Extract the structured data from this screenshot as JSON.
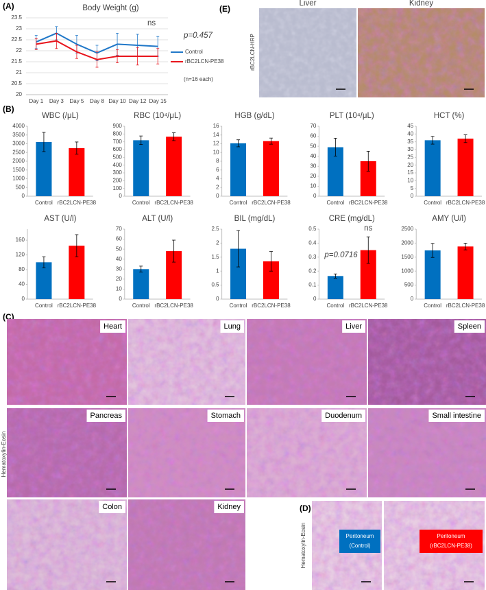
{
  "panel_labels": [
    "(A)",
    "(B)",
    "(C)",
    "(D)",
    "(E)"
  ],
  "chart_data": [
    {
      "type": "line",
      "title": "Body Weight (g)",
      "categories": [
        "Day 1",
        "Day 3",
        "Day 5",
        "Day 8",
        "Day 10",
        "Day 12",
        "Day 15"
      ],
      "series": [
        {
          "name": "Control",
          "color": "#1f77c8",
          "values": [
            22.4,
            22.8,
            22.3,
            21.9,
            22.3,
            22.25,
            22.2
          ],
          "errors": [
            0.3,
            0.3,
            0.4,
            0.35,
            0.5,
            0.5,
            0.45
          ]
        },
        {
          "name": "rBC2LCN-PE38",
          "color": "#e8141c",
          "values": [
            22.3,
            22.45,
            21.95,
            21.6,
            21.75,
            21.75,
            21.75
          ],
          "errors": [
            0.25,
            0.35,
            0.3,
            0.35,
            0.3,
            0.4,
            0.35
          ]
        }
      ],
      "ylim": [
        20,
        23.5
      ],
      "yticks": [
        20,
        20.5,
        21,
        21.5,
        22,
        22.5,
        23,
        23.5
      ],
      "grid": true,
      "annotations": [
        "ns",
        "p=0.457",
        "(n=16 each)"
      ]
    },
    {
      "type": "bar",
      "title": "WBC (/μL)",
      "categories": [
        "Control",
        "rBC2LCN-PE38"
      ],
      "values": [
        3100,
        2750
      ],
      "errors": [
        550,
        350
      ],
      "colors": [
        "#0070c0",
        "#ff0000"
      ],
      "ylim": [
        0,
        4000
      ],
      "yticks": [
        0,
        500,
        1000,
        1500,
        2000,
        2500,
        3000,
        3500,
        4000
      ],
      "grid": false
    },
    {
      "type": "bar",
      "title": "RBC (10⁴/μL)",
      "categories": [
        "Control",
        "rBC2LCN-PE38"
      ],
      "values": [
        720,
        765
      ],
      "errors": [
        55,
        50
      ],
      "colors": [
        "#0070c0",
        "#ff0000"
      ],
      "ylim": [
        0,
        900
      ],
      "yticks": [
        0,
        100,
        200,
        300,
        400,
        500,
        600,
        700,
        800,
        900
      ],
      "grid": false
    },
    {
      "type": "bar",
      "title": "HGB (g/dL)",
      "categories": [
        "Control",
        "rBC2LCN-PE38"
      ],
      "values": [
        12.1,
        12.6
      ],
      "errors": [
        0.8,
        0.7
      ],
      "colors": [
        "#0070c0",
        "#ff0000"
      ],
      "ylim": [
        0,
        16
      ],
      "yticks": [
        0,
        2,
        4,
        6,
        8,
        10,
        12,
        14,
        16
      ],
      "grid": false
    },
    {
      "type": "bar",
      "title": "PLT (10⁴/μL)",
      "categories": [
        "Control",
        "rBC2LCN-PE38"
      ],
      "values": [
        49,
        35
      ],
      "errors": [
        9,
        10
      ],
      "colors": [
        "#0070c0",
        "#ff0000"
      ],
      "ylim": [
        0,
        70
      ],
      "yticks": [
        0,
        10,
        20,
        30,
        40,
        50,
        60,
        70
      ],
      "grid": false
    },
    {
      "type": "bar",
      "title": "HCT (%)",
      "categories": [
        "Control",
        "rBC2LCN-PE38"
      ],
      "values": [
        36,
        37
      ],
      "errors": [
        2.5,
        2.5
      ],
      "colors": [
        "#0070c0",
        "#ff0000"
      ],
      "ylim": [
        0,
        45
      ],
      "yticks": [
        0,
        5,
        10,
        15,
        20,
        25,
        30,
        35,
        40,
        45
      ],
      "grid": false
    },
    {
      "type": "bar",
      "title": "AST (U/l)",
      "categories": [
        "Control",
        "rBC2LCN-PE38"
      ],
      "values": [
        100,
        145
      ],
      "errors": [
        15,
        30
      ],
      "colors": [
        "#0070c0",
        "#ff0000"
      ],
      "ylim": [
        0,
        190
      ],
      "yticks": [
        0,
        40,
        80,
        120,
        160
      ],
      "grid": false
    },
    {
      "type": "bar",
      "title": "ALT (U/l)",
      "categories": [
        "Control",
        "rBC2LCN-PE38"
      ],
      "values": [
        30,
        48
      ],
      "errors": [
        3,
        11
      ],
      "colors": [
        "#0070c0",
        "#ff0000"
      ],
      "ylim": [
        0,
        70
      ],
      "yticks": [
        0,
        10,
        20,
        30,
        40,
        50,
        60,
        70
      ],
      "grid": false
    },
    {
      "type": "bar",
      "title": "BIL (mg/dL)",
      "categories": [
        "Control",
        "rBC2LCN-PE38"
      ],
      "values": [
        1.8,
        1.35
      ],
      "errors": [
        0.65,
        0.35
      ],
      "colors": [
        "#0070c0",
        "#ff0000"
      ],
      "ylim": [
        0,
        2.5
      ],
      "yticks": [
        0,
        0.5,
        1,
        1.5,
        2,
        2.5
      ],
      "grid": false
    },
    {
      "type": "bar",
      "title": "CRE (mg/dL)",
      "categories": [
        "Control",
        "rBC2LCN-PE38"
      ],
      "values": [
        0.165,
        0.35
      ],
      "errors": [
        0.015,
        0.095
      ],
      "colors": [
        "#0070c0",
        "#ff0000"
      ],
      "ylim": [
        0,
        0.5
      ],
      "yticks": [
        0,
        0.1,
        0.2,
        0.3,
        0.4,
        0.5
      ],
      "grid": false,
      "annotations": [
        "ns",
        "p=0.0716"
      ]
    },
    {
      "type": "bar",
      "title": "AMY (U/l)",
      "categories": [
        "Control",
        "rBC2LCN-PE38"
      ],
      "values": [
        1740,
        1880
      ],
      "errors": [
        250,
        120
      ],
      "colors": [
        "#0070c0",
        "#ff0000"
      ],
      "ylim": [
        0,
        2500
      ],
      "yticks": [
        0,
        500,
        1000,
        1500,
        2000,
        2500
      ],
      "grid": false
    }
  ],
  "panel_c": {
    "stain_label": "Hematoxylin-Eosin",
    "tissues": [
      "Heart",
      "Lung",
      "Liver",
      "Spleen",
      "Pancreas",
      "Stomach",
      "Duodenum",
      "Small intestine",
      "Colon",
      "Kidney"
    ]
  },
  "panel_d": {
    "stain_label": "Hematoxylin-Eosin",
    "samples": [
      [
        "Peritoneum",
        "(Control)"
      ],
      [
        "Peritoneum",
        "(rBC2LCN-PE38)"
      ]
    ]
  },
  "panel_e": {
    "stain_label": "rBC2LCN-HRP",
    "tissues": [
      "Liver",
      "Kidney"
    ]
  }
}
